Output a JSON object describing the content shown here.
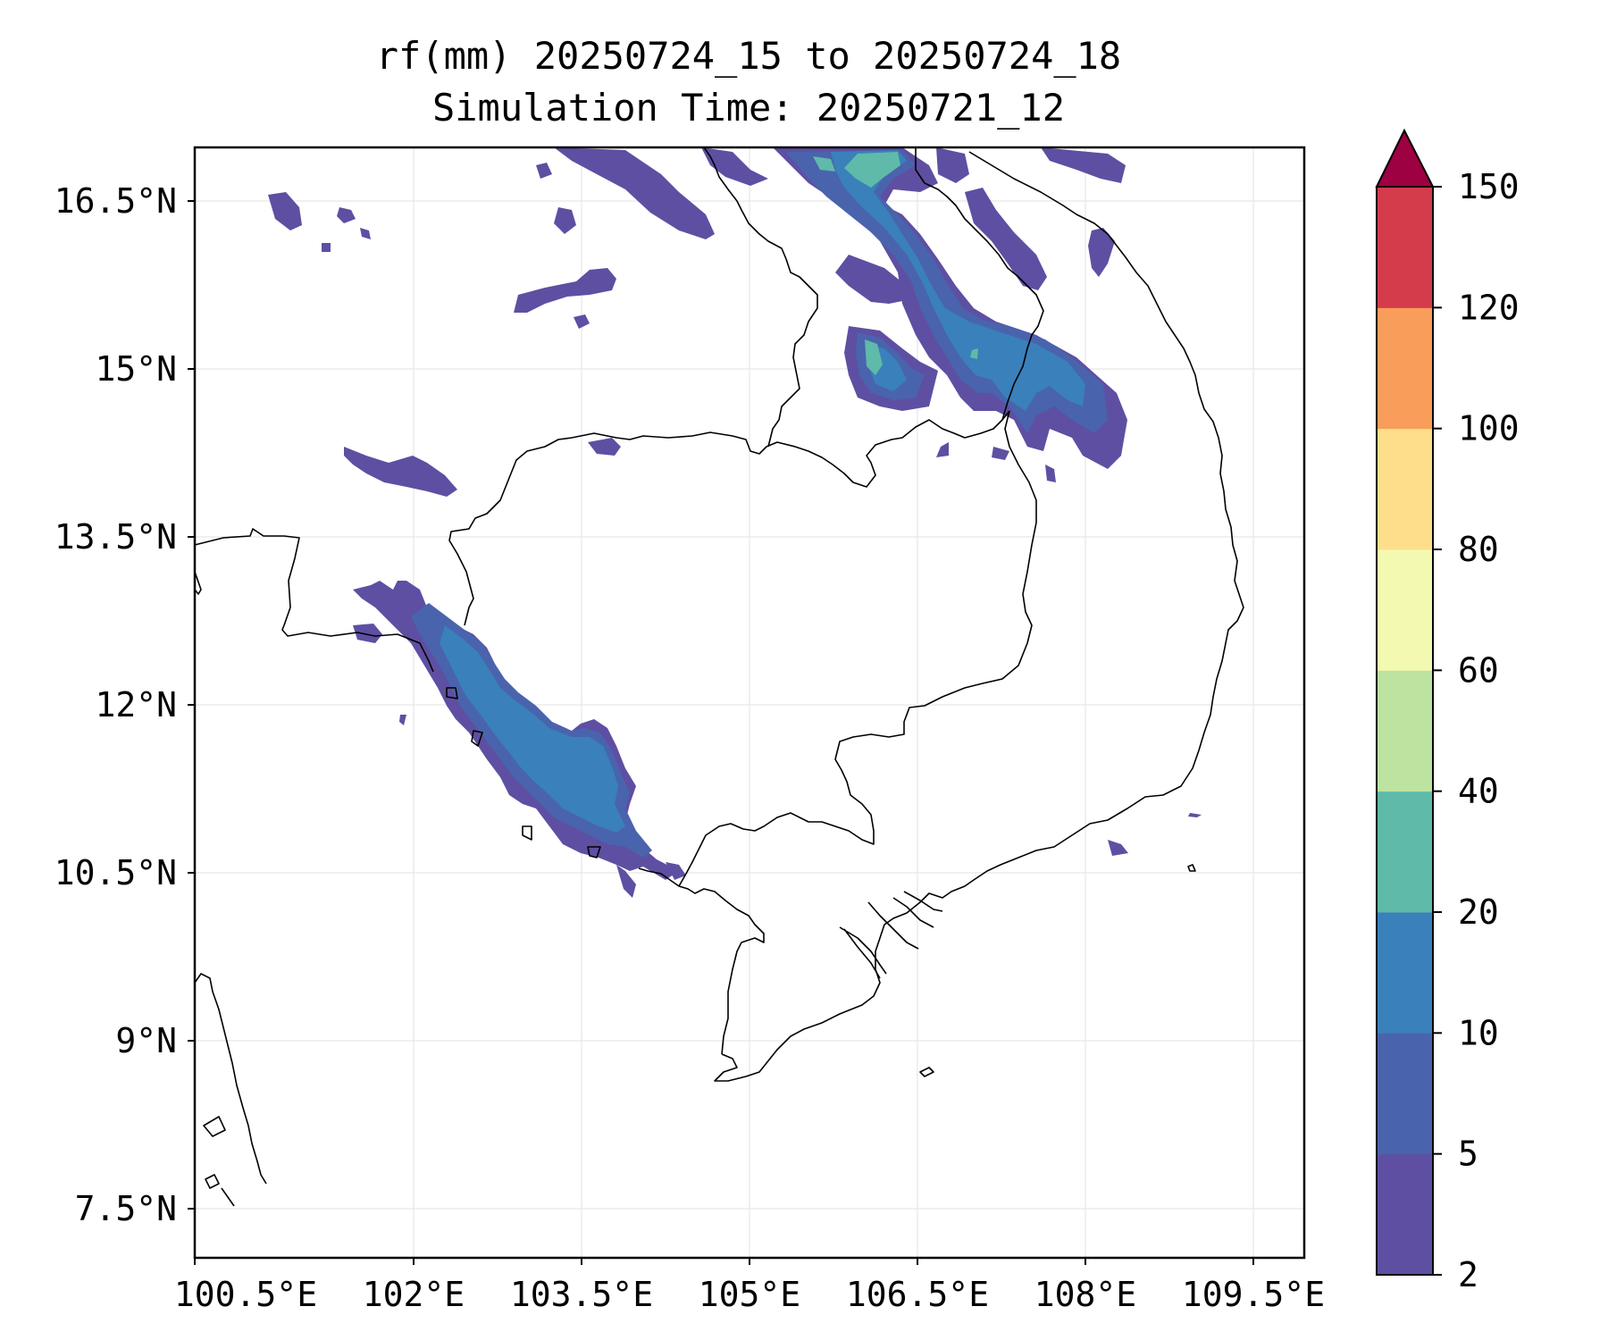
{
  "map": {
    "title_line1": "rf(mm) 20250724_15 to 20250724_18",
    "title_line2": "Simulation Time: 20250721_12",
    "x_ticks": [
      "100.5°E",
      "102°E",
      "103.5°E",
      "105°E",
      "106.5°E",
      "108°E",
      "109.5°E"
    ],
    "y_ticks": [
      "16.5°N",
      "15°N",
      "13.5°N",
      "12°N",
      "10.5°N",
      "9°N",
      "7.5°N"
    ],
    "colorbar": {
      "labels": [
        "2",
        "5",
        "10",
        "20",
        "40",
        "60",
        "80",
        "100",
        "120",
        "150"
      ],
      "colors": [
        "#5e4fa2",
        "#4a63ad",
        "#3a80ba",
        "#5fbaa9",
        "#bde3a0",
        "#f3f9b0",
        "#fddf8b",
        "#f99d5a",
        "#d43c4c",
        "#9e0142"
      ]
    }
  }
}
